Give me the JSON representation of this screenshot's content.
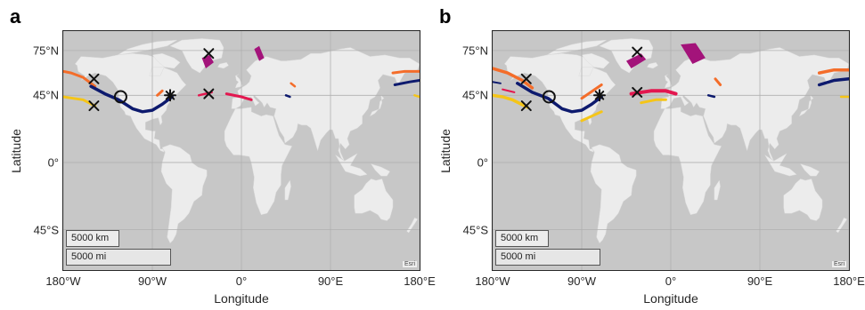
{
  "panels": [
    {
      "letter": "a",
      "variant": "a"
    },
    {
      "letter": "b",
      "variant": "b"
    }
  ],
  "axes": {
    "xlabel": "Longitude",
    "ylabel": "Latitude",
    "xticks": [
      {
        "label": "180°W",
        "lon": -180
      },
      {
        "label": "90°W",
        "lon": -90
      },
      {
        "label": "0°",
        "lon": 0
      },
      {
        "label": "90°E",
        "lon": 90
      },
      {
        "label": "180°E",
        "lon": 180
      }
    ],
    "yticks": [
      {
        "label": "75°N",
        "lat": 75
      },
      {
        "label": "45°N",
        "lat": 45
      },
      {
        "label": "0°",
        "lat": 0
      },
      {
        "label": "45°S",
        "lat": -45
      }
    ],
    "lon_range": [
      -180,
      180
    ],
    "lat_range": [
      -72,
      88
    ]
  },
  "scalebar": {
    "km": "5000 km",
    "mi": "5000 mi"
  },
  "attribution": "Esri",
  "colors": {
    "ocean": "#c7c7c7",
    "land": "#ececec",
    "grid": "#b0b0b0",
    "orange": "#f46d2a",
    "navy": "#0d1a6e",
    "yellow": "#f5c518",
    "crimson": "#e3174f",
    "magenta": "#a3137a",
    "marker": "#111111"
  }
}
